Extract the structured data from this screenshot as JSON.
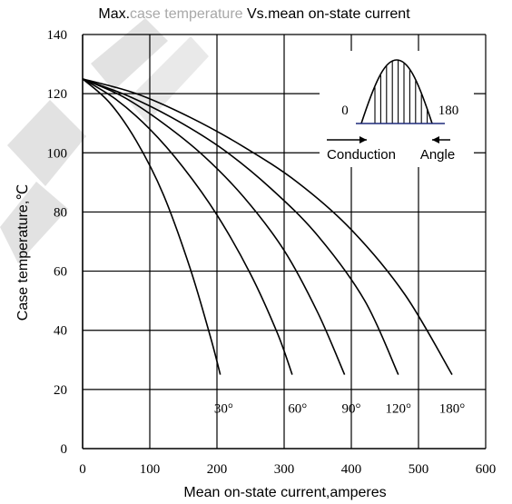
{
  "chart_data": {
    "type": "line",
    "title_parts": [
      "Max.",
      "case temperature",
      " Vs.mean on-state current"
    ],
    "xlabel": "Mean on-state current,amperes",
    "ylabel": "Case temperature,℃",
    "xlim": [
      0,
      600
    ],
    "ylim": [
      0,
      140
    ],
    "x_ticks": [
      0,
      100,
      200,
      300,
      400,
      500,
      600
    ],
    "y_ticks": [
      0,
      20,
      40,
      60,
      80,
      100,
      120,
      140
    ],
    "x_tick_labels": [
      "0",
      "100",
      "200",
      "300",
      "400",
      "500",
      "600"
    ],
    "y_tick_labels": [
      "0",
      "20",
      "40",
      "60",
      "80",
      "100",
      "120",
      "140"
    ],
    "grid": true,
    "series": [
      {
        "name": "30°",
        "label_at": [
          210,
          14
        ],
        "x": [
          0,
          40,
          80,
          120,
          160,
          190,
          205
        ],
        "y": [
          125,
          117,
          104,
          86,
          61,
          38,
          25
        ]
      },
      {
        "name": "60°",
        "label_at": [
          320,
          14
        ],
        "x": [
          0,
          50,
          100,
          150,
          200,
          250,
          290,
          312
        ],
        "y": [
          125,
          118,
          108,
          95,
          79,
          59,
          39,
          25
        ]
      },
      {
        "name": "90°",
        "label_at": [
          400,
          14
        ],
        "x": [
          0,
          60,
          120,
          180,
          240,
          300,
          350,
          390
        ],
        "y": [
          125,
          119,
          110,
          99,
          85,
          67,
          46,
          25
        ]
      },
      {
        "name": "120°",
        "label_at": [
          470,
          14
        ],
        "x": [
          0,
          70,
          140,
          210,
          280,
          350,
          420,
          470
        ],
        "y": [
          125,
          119,
          111,
          101,
          88,
          72,
          50,
          25
        ]
      },
      {
        "name": "180°",
        "label_at": [
          550,
          14
        ],
        "x": [
          0,
          80,
          160,
          240,
          320,
          400,
          480,
          550
        ],
        "y": [
          125,
          120,
          112,
          102,
          90,
          74,
          52,
          25
        ]
      }
    ],
    "inset": {
      "left_label": "0",
      "right_label": "180",
      "caption_left": "Conduction",
      "caption_right": "Angle"
    },
    "colors": {
      "line": "#000000",
      "grid": "#000000",
      "title_faded": "#a8a8a8",
      "inset_baseline": "#1f2a7a",
      "watermark": "#d9d9d9"
    }
  }
}
